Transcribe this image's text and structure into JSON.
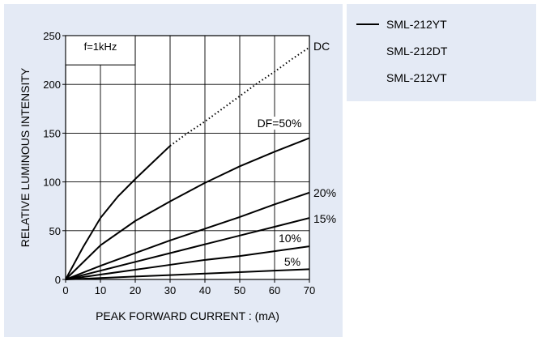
{
  "chart_data": {
    "type": "line",
    "xlabel": "PEAK  FORWARD  CURRENT : (mA)",
    "ylabel": "RELATIVE  LUMINOUS  INTENSITY",
    "xlim": [
      0,
      70
    ],
    "ylim": [
      0,
      250
    ],
    "xticks": [
      "0",
      "10",
      "20",
      "30",
      "40",
      "50",
      "60",
      "70"
    ],
    "yticks": [
      "0",
      "50",
      "100",
      "150",
      "200",
      "250"
    ],
    "grid": true,
    "condition_label": "f=1kHz",
    "series": [
      {
        "name": "DC",
        "style": "solid-then-dotted",
        "x": [
          0,
          5,
          10,
          15,
          20,
          25,
          30,
          35,
          40,
          45,
          50,
          55,
          60,
          65,
          70
        ],
        "y": [
          0,
          33,
          63,
          85,
          103,
          120,
          137,
          150,
          162,
          175,
          188,
          201,
          213,
          226,
          238
        ]
      },
      {
        "name": "DF=50%",
        "x": [
          0,
          10,
          20,
          30,
          40,
          50,
          60,
          70
        ],
        "y": [
          0,
          35,
          60,
          80,
          99,
          116,
          131,
          145
        ]
      },
      {
        "name": "20%",
        "x": [
          0,
          10,
          20,
          30,
          40,
          50,
          60,
          70
        ],
        "y": [
          0,
          14,
          27,
          40,
          52,
          64,
          77,
          89
        ]
      },
      {
        "name": "15%",
        "x": [
          0,
          10,
          20,
          30,
          40,
          50,
          60,
          70
        ],
        "y": [
          0,
          9,
          18,
          27,
          36,
          45,
          54,
          63
        ]
      },
      {
        "name": "10%",
        "x": [
          0,
          10,
          20,
          30,
          40,
          50,
          60,
          70
        ],
        "y": [
          0,
          5,
          10,
          15,
          20,
          24,
          29,
          34
        ]
      },
      {
        "name": "5%",
        "x": [
          0,
          10,
          20,
          30,
          40,
          50,
          60,
          70
        ],
        "y": [
          0,
          1.5,
          3,
          4.5,
          6,
          7.5,
          9,
          10.5
        ]
      }
    ]
  },
  "legend": {
    "items": [
      {
        "label": "SML-212YT",
        "marker": "line"
      },
      {
        "label": "SML-212DT",
        "marker": "none"
      },
      {
        "label": "SML-212VT",
        "marker": "none"
      }
    ]
  }
}
